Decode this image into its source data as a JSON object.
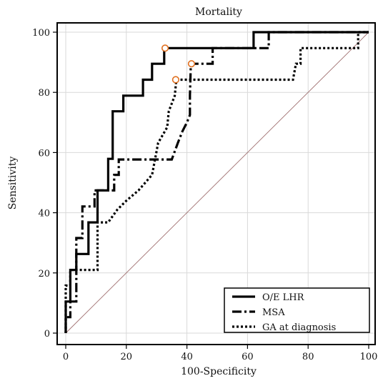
{
  "chart_data": {
    "type": "line",
    "title": "Mortality",
    "xlabel": "100-Specificity",
    "ylabel": "Sensitivity",
    "xlim": [
      0,
      100
    ],
    "ylim": [
      0,
      100
    ],
    "xticks": [
      0,
      20,
      40,
      60,
      80,
      100
    ],
    "yticks": [
      0,
      20,
      40,
      60,
      80,
      100
    ],
    "grid": true,
    "legend_position": "bottom-right",
    "diagonal_reference": true,
    "colors": {
      "series": "#000000",
      "grid": "#d9d9d9",
      "diagonal": "#a07070",
      "marker": "#e07020"
    },
    "series": [
      {
        "name": "O/E LHR",
        "style": "solid",
        "points": [
          [
            0,
            0
          ],
          [
            0,
            10.5
          ],
          [
            1.5,
            10.5
          ],
          [
            1.5,
            21
          ],
          [
            3.5,
            21
          ],
          [
            3.5,
            26.3
          ],
          [
            7.5,
            26.3
          ],
          [
            7.5,
            36.8
          ],
          [
            10.5,
            36.8
          ],
          [
            10.5,
            47.4
          ],
          [
            14,
            47.4
          ],
          [
            14,
            57.9
          ],
          [
            15.5,
            57.9
          ],
          [
            15.5,
            73.7
          ],
          [
            19,
            73.7
          ],
          [
            19,
            78.9
          ],
          [
            25.5,
            78.9
          ],
          [
            25.5,
            84.2
          ],
          [
            28.5,
            84.2
          ],
          [
            28.5,
            89.5
          ],
          [
            32.5,
            89.5
          ],
          [
            32.5,
            94.7
          ],
          [
            62,
            94.7
          ],
          [
            62,
            100
          ],
          [
            100,
            100
          ]
        ],
        "marker": [
          32.8,
          94.7
        ]
      },
      {
        "name": "MSA",
        "style": "dashdot",
        "points": [
          [
            0,
            0
          ],
          [
            0,
            5.3
          ],
          [
            1.5,
            5.3
          ],
          [
            1.5,
            10.5
          ],
          [
            3.5,
            10.5
          ],
          [
            3.5,
            31.6
          ],
          [
            5.5,
            31.6
          ],
          [
            5.5,
            42.1
          ],
          [
            9.5,
            42.1
          ],
          [
            9.5,
            47.4
          ],
          [
            16,
            47.4
          ],
          [
            16,
            52.6
          ],
          [
            17.5,
            52.6
          ],
          [
            17.5,
            57.7
          ],
          [
            35,
            57.7
          ],
          [
            37,
            63.2
          ],
          [
            38.5,
            67
          ],
          [
            40,
            70
          ],
          [
            41,
            72.5
          ],
          [
            41,
            79
          ],
          [
            41.3,
            89.5
          ],
          [
            48.5,
            89.5
          ],
          [
            48.5,
            94.7
          ],
          [
            67,
            94.7
          ],
          [
            67,
            100
          ],
          [
            100,
            100
          ]
        ],
        "marker": [
          41.5,
          89.5
        ]
      },
      {
        "name": "GA at diagnosis",
        "style": "dotted",
        "points": [
          [
            0,
            0
          ],
          [
            0,
            15.8
          ],
          [
            1.5,
            15.8
          ],
          [
            1.5,
            21
          ],
          [
            10.5,
            21
          ],
          [
            10.5,
            36.8
          ],
          [
            14,
            36.8
          ],
          [
            17,
            41
          ],
          [
            20,
            44
          ],
          [
            24,
            47.4
          ],
          [
            28.5,
            52.6
          ],
          [
            29.5,
            57.9
          ],
          [
            30.5,
            63.2
          ],
          [
            33.5,
            68.4
          ],
          [
            34,
            73.7
          ],
          [
            36,
            78.9
          ],
          [
            36.5,
            84.2
          ],
          [
            75,
            84.2
          ],
          [
            76,
            89.5
          ],
          [
            77.5,
            89.5
          ],
          [
            77.5,
            94.7
          ],
          [
            96.5,
            94.7
          ],
          [
            96.5,
            100
          ],
          [
            100,
            100
          ]
        ],
        "marker": [
          36.3,
          84.2
        ]
      }
    ]
  }
}
